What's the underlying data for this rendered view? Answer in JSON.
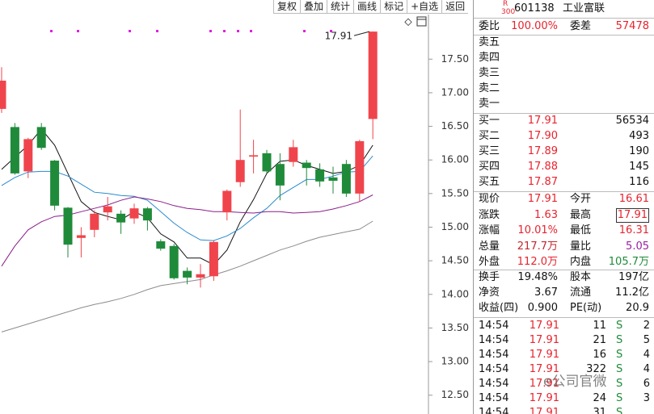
{
  "toolbar": [
    "复权",
    "叠加",
    "统计",
    "画线",
    "标记",
    "+自选",
    "返回"
  ],
  "chart": {
    "ylim": [
      12.22,
      18.38
    ],
    "yticks": [
      {
        "value": 17.5,
        "label": "17.50"
      },
      {
        "value": 17.0,
        "label": "17.00"
      },
      {
        "value": 16.5,
        "label": "16.50"
      },
      {
        "value": 16.0,
        "label": "16.00"
      },
      {
        "value": 15.5,
        "label": "15.50"
      },
      {
        "value": 15.0,
        "label": "15.00"
      },
      {
        "value": 14.5,
        "label": "14.50"
      },
      {
        "value": 14.0,
        "label": "14.00"
      },
      {
        "value": 13.5,
        "label": "13.50"
      },
      {
        "value": 13.0,
        "label": "13.00"
      },
      {
        "value": 12.5,
        "label": "12.50"
      }
    ],
    "up_color": "#f0444c",
    "down_color": "#1f8b3a",
    "candles": [
      {
        "open": 16.76,
        "high": 17.38,
        "low": 16.7,
        "close": 17.18
      },
      {
        "open": 16.49,
        "high": 16.55,
        "low": 15.78,
        "close": 15.8
      },
      {
        "open": 15.83,
        "high": 16.33,
        "low": 15.73,
        "close": 16.31
      },
      {
        "open": 16.49,
        "high": 16.55,
        "low": 16.15,
        "close": 16.18
      },
      {
        "open": 15.99,
        "high": 16.0,
        "low": 15.25,
        "close": 15.32
      },
      {
        "open": 15.29,
        "high": 15.3,
        "low": 14.55,
        "close": 14.74
      },
      {
        "open": 14.84,
        "high": 15.0,
        "low": 14.55,
        "close": 14.88
      },
      {
        "open": 14.96,
        "high": 15.25,
        "low": 14.85,
        "close": 15.2
      },
      {
        "open": 15.22,
        "high": 15.45,
        "low": 15.1,
        "close": 15.31
      },
      {
        "open": 15.2,
        "high": 15.25,
        "low": 14.9,
        "close": 15.07
      },
      {
        "open": 15.13,
        "high": 15.35,
        "low": 15.05,
        "close": 15.28
      },
      {
        "open": 15.28,
        "high": 15.3,
        "low": 14.95,
        "close": 15.1
      },
      {
        "open": 14.79,
        "high": 14.82,
        "low": 14.65,
        "close": 14.68
      },
      {
        "open": 14.72,
        "high": 14.75,
        "low": 14.22,
        "close": 14.24
      },
      {
        "open": 14.35,
        "high": 14.4,
        "low": 14.15,
        "close": 14.25
      },
      {
        "open": 14.25,
        "high": 14.45,
        "low": 14.1,
        "close": 14.3
      },
      {
        "open": 14.27,
        "high": 14.8,
        "low": 14.2,
        "close": 14.78
      },
      {
        "open": 15.22,
        "high": 15.56,
        "low": 15.1,
        "close": 15.54
      },
      {
        "open": 15.67,
        "high": 16.75,
        "low": 15.6,
        "close": 16.0
      },
      {
        "open": 16.05,
        "high": 16.3,
        "low": 15.8,
        "close": 16.07
      },
      {
        "open": 16.1,
        "high": 16.15,
        "low": 15.8,
        "close": 15.83
      },
      {
        "open": 15.94,
        "high": 16.1,
        "low": 15.4,
        "close": 15.62
      },
      {
        "open": 15.97,
        "high": 16.3,
        "low": 15.9,
        "close": 16.19
      },
      {
        "open": 15.96,
        "high": 16.0,
        "low": 15.62,
        "close": 15.88
      },
      {
        "open": 15.86,
        "high": 15.95,
        "low": 15.6,
        "close": 15.68
      },
      {
        "open": 15.74,
        "high": 15.9,
        "low": 15.5,
        "close": 15.69
      },
      {
        "open": 15.94,
        "high": 16.0,
        "low": 15.45,
        "close": 15.5
      },
      {
        "open": 15.5,
        "high": 16.3,
        "low": 15.38,
        "close": 16.28
      },
      {
        "open": 16.61,
        "high": 17.91,
        "low": 16.31,
        "close": 17.91
      }
    ],
    "lines": [
      {
        "color": "#111111",
        "values": [
          15.86,
          16.04,
          16.22,
          16.46,
          16.22,
          15.8,
          15.38,
          15.22,
          15.16,
          15.11,
          15.23,
          15.14,
          14.9,
          14.78,
          14.54,
          14.54,
          14.44,
          14.66,
          15.08,
          15.41,
          15.8,
          15.98,
          16.0,
          15.92,
          15.86,
          15.8,
          15.83,
          15.92,
          16.22
        ]
      },
      {
        "color": "#2a8bd0",
        "values": [
          15.62,
          15.74,
          15.82,
          15.83,
          15.83,
          15.76,
          15.64,
          15.52,
          15.5,
          15.47,
          15.46,
          15.4,
          15.23,
          15.06,
          14.92,
          14.81,
          14.8,
          14.87,
          14.98,
          15.14,
          15.28,
          15.47,
          15.59,
          15.71,
          15.71,
          15.76,
          15.82,
          15.83,
          16.06
        ]
      },
      {
        "color": "#8a1e8a",
        "values": [
          14.42,
          14.72,
          14.96,
          15.08,
          15.16,
          15.18,
          15.23,
          15.28,
          15.33,
          15.4,
          15.45,
          15.42,
          15.38,
          15.32,
          15.28,
          15.26,
          15.23,
          15.23,
          15.22,
          15.21,
          15.23,
          15.23,
          15.21,
          15.22,
          15.23,
          15.27,
          15.32,
          15.38,
          15.48
        ]
      },
      {
        "color": "#8c8c8c",
        "values": [
          13.44,
          13.5,
          13.56,
          13.62,
          13.68,
          13.74,
          13.8,
          13.85,
          13.89,
          13.94,
          14.0,
          14.07,
          14.13,
          14.16,
          14.19,
          14.22,
          14.29,
          14.35,
          14.42,
          14.5,
          14.58,
          14.66,
          14.72,
          14.79,
          14.85,
          14.89,
          14.93,
          14.97,
          15.09
        ]
      }
    ],
    "high_marker": 17.91
  },
  "quote": {
    "badge_top": "R",
    "badge_bottom": "300",
    "code": "601138",
    "name": "工业富联",
    "ratio": [
      {
        "label": "委比",
        "value": "100.00%",
        "color": "#e8232e"
      },
      {
        "label": "委差",
        "value": "57478",
        "color": "#e8232e"
      }
    ],
    "sell": [
      "卖五",
      "卖四",
      "卖三",
      "卖二",
      "卖一"
    ],
    "buy": [
      {
        "label": "买一",
        "price": "17.91",
        "volume": "56534"
      },
      {
        "label": "买二",
        "price": "17.90",
        "volume": "493"
      },
      {
        "label": "买三",
        "price": "17.89",
        "volume": "190"
      },
      {
        "label": "买四",
        "price": "17.88",
        "volume": "145"
      },
      {
        "label": "买五",
        "price": "17.87",
        "volume": "116"
      }
    ],
    "stats": [
      [
        {
          "label": "现价",
          "value": "17.91",
          "color": "#e8232e"
        },
        {
          "label": "今开",
          "value": "16.61",
          "color": "#e8232e"
        }
      ],
      [
        {
          "label": "涨跌",
          "value": "1.63",
          "color": "#e8232e"
        },
        {
          "label": "最高",
          "value": "17.91",
          "color": "#e8232e"
        }
      ],
      [
        {
          "label": "涨幅",
          "value": "10.01%",
          "color": "#e8232e"
        },
        {
          "label": "最低",
          "value": "16.31",
          "color": "#e8232e"
        }
      ],
      [
        {
          "label": "总量",
          "value": "217.7万",
          "color": "#c0282e"
        },
        {
          "label": "量比",
          "value": "5.05",
          "color": "#9a1fa0"
        }
      ],
      [
        {
          "label": "外盘",
          "value": "112.0万",
          "color": "#e8232e"
        },
        {
          "label": "内盘",
          "value": "105.7万",
          "color": "#1f8b3a"
        }
      ]
    ],
    "finance": [
      [
        {
          "label": "换手",
          "value": "19.48%"
        },
        {
          "label": "股本",
          "value": "197亿"
        }
      ],
      [
        {
          "label": "净资",
          "value": "3.67"
        },
        {
          "label": "流通",
          "value": "11.2亿"
        }
      ],
      [
        {
          "label": "收益(四)",
          "value": "0.900"
        },
        {
          "label": "PE(动)",
          "value": "20.9"
        }
      ]
    ],
    "ticks": [
      [
        "14:54",
        "17.91",
        "11",
        "S",
        "2"
      ],
      [
        "14:54",
        "17.91",
        "21",
        "S",
        "5"
      ],
      [
        "14:54",
        "17.91",
        "16",
        "S",
        "4"
      ],
      [
        "14:54",
        "17.91",
        "322",
        "S",
        "4"
      ],
      [
        "14:54",
        "17.91",
        "S",
        "6"
      ],
      [
        "14:54",
        "17.91",
        "24",
        "S",
        "3"
      ],
      [
        "14:54",
        "17.91",
        "31",
        "S"
      ]
    ],
    "watermark": "e公司官微"
  }
}
